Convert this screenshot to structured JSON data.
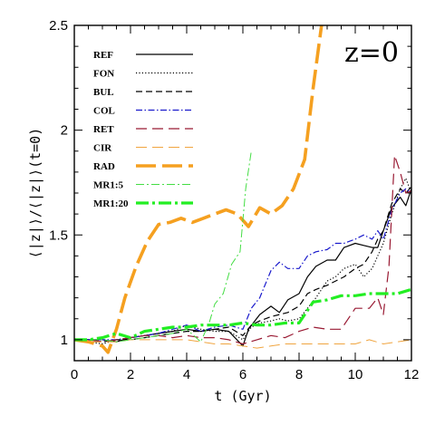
{
  "chart_data": {
    "type": "line",
    "panel_label": "z=0",
    "xlabel": "t (Gyr)",
    "ylabel": "⟨|z|⟩/⟨|z|⟩(t=0)",
    "xlim": [
      0,
      12
    ],
    "ylim": [
      0.9,
      2.5
    ],
    "xticks": [
      0,
      2,
      4,
      6,
      8,
      10,
      12
    ],
    "yticks": [
      1,
      1.5,
      2,
      2.5
    ],
    "xtick_labels": [
      "0",
      "2",
      "4",
      "6",
      "8",
      "10",
      "12"
    ],
    "ytick_labels": [
      "1",
      "1.5",
      "2",
      "2.5"
    ],
    "legend_position": "top-left",
    "grid": false,
    "series": [
      {
        "name": "REF",
        "color": "#000000",
        "dash": "none",
        "width": 1.2,
        "x": [
          0,
          0.5,
          1,
          1.5,
          2,
          2.5,
          3,
          3.5,
          4,
          4.5,
          5,
          5.5,
          6,
          6.2,
          6.6,
          7,
          7.3,
          7.6,
          8,
          8.3,
          8.6,
          9,
          9.3,
          9.6,
          10,
          10.3,
          10.6,
          10.8,
          11,
          11.3,
          11.6,
          11.8,
          12
        ],
        "y": [
          1.0,
          1.0,
          1.0,
          0.99,
          1.01,
          1.02,
          1.03,
          1.04,
          1.05,
          1.04,
          1.05,
          1.04,
          0.97,
          1.05,
          1.12,
          1.16,
          1.13,
          1.19,
          1.22,
          1.3,
          1.35,
          1.38,
          1.38,
          1.44,
          1.46,
          1.45,
          1.44,
          1.44,
          1.52,
          1.63,
          1.68,
          1.64,
          1.72
        ]
      },
      {
        "name": "FON",
        "color": "#000000",
        "dash": "1.2,2.2",
        "width": 1.2,
        "x": [
          0,
          0.5,
          1,
          1.5,
          2,
          2.5,
          3,
          3.5,
          4,
          4.5,
          5,
          5.5,
          6,
          6.3,
          6.6,
          7,
          7.3,
          7.6,
          8,
          8.3,
          8.6,
          9,
          9.3,
          9.6,
          10,
          10.3,
          10.6,
          10.8,
          11,
          11.3,
          11.6,
          11.8,
          12
        ],
        "y": [
          1.0,
          0.99,
          0.98,
          1.0,
          1.01,
          1.02,
          1.03,
          1.04,
          1.07,
          1.05,
          1.04,
          1.04,
          1.0,
          1.06,
          1.08,
          1.09,
          1.1,
          1.09,
          1.1,
          1.15,
          1.2,
          1.28,
          1.3,
          1.34,
          1.36,
          1.3,
          1.34,
          1.4,
          1.46,
          1.6,
          1.72,
          1.77,
          1.7
        ]
      },
      {
        "name": "BUL",
        "color": "#000000",
        "dash": "7,4",
        "width": 1.2,
        "x": [
          0,
          0.5,
          1,
          1.5,
          2,
          2.5,
          3,
          3.5,
          4,
          4.5,
          5,
          5.5,
          6,
          6.3,
          6.6,
          7,
          7.3,
          7.6,
          8,
          8.3,
          8.6,
          9,
          9.3,
          9.6,
          10,
          10.3,
          10.6,
          10.8,
          11,
          11.3,
          11.6,
          11.8,
          12
        ],
        "y": [
          1.0,
          1.0,
          0.99,
          1.0,
          1.0,
          1.01,
          1.02,
          1.03,
          1.04,
          1.04,
          1.05,
          1.06,
          1.02,
          1.07,
          1.09,
          1.11,
          1.12,
          1.13,
          1.16,
          1.22,
          1.24,
          1.26,
          1.28,
          1.3,
          1.34,
          1.36,
          1.42,
          1.48,
          1.52,
          1.65,
          1.72,
          1.7,
          1.73
        ]
      },
      {
        "name": "COL",
        "color": "#1a1acc",
        "dash": "7,2.5,1.5,2.5",
        "width": 1.2,
        "x": [
          0,
          0.5,
          1,
          1.5,
          2,
          2.5,
          3,
          3.5,
          4,
          4.5,
          5,
          5.5,
          6,
          6.3,
          6.6,
          7,
          7.3,
          7.6,
          8,
          8.3,
          8.6,
          9,
          9.3,
          9.6,
          10,
          10.3,
          10.6,
          10.8,
          11,
          11.3,
          11.6,
          11.8,
          12
        ],
        "y": [
          1.0,
          1.0,
          1.0,
          1.0,
          1.01,
          1.02,
          1.03,
          1.05,
          1.07,
          1.04,
          1.06,
          1.07,
          1.05,
          1.15,
          1.2,
          1.33,
          1.37,
          1.34,
          1.34,
          1.4,
          1.42,
          1.43,
          1.46,
          1.46,
          1.48,
          1.5,
          1.48,
          1.52,
          1.48,
          1.62,
          1.7,
          1.72,
          1.7
        ]
      },
      {
        "name": "RET",
        "color": "#991a33",
        "dash": "12,6",
        "width": 1.2,
        "x": [
          0,
          0.5,
          1,
          1.5,
          2,
          2.5,
          3,
          3.5,
          4,
          4.5,
          5,
          5.5,
          6,
          6.5,
          7,
          7.5,
          8,
          8.5,
          9,
          9.5,
          10,
          10.5,
          10.8,
          11,
          11.2,
          11.4,
          11.6,
          11.8,
          12
        ],
        "y": [
          1.0,
          1.0,
          0.99,
          1.0,
          1.01,
          1.02,
          1.02,
          1.01,
          1.02,
          1.01,
          1.01,
          1.0,
          0.98,
          1.0,
          1.02,
          1.01,
          1.04,
          1.06,
          1.05,
          1.05,
          1.15,
          1.15,
          1.2,
          1.12,
          1.35,
          1.88,
          1.8,
          1.7,
          1.71
        ]
      },
      {
        "name": "CIR",
        "color": "#f0a540",
        "dash": "12,6",
        "width": 1.0,
        "x": [
          0,
          0.5,
          1,
          1.5,
          2,
          2.5,
          3,
          3.5,
          4,
          4.5,
          5,
          5.5,
          6,
          6.5,
          7,
          7.5,
          8,
          8.5,
          9,
          9.5,
          10,
          10.5,
          11,
          11.5,
          12
        ],
        "y": [
          1.0,
          0.99,
          0.99,
          0.99,
          1.0,
          1.0,
          1.0,
          1.0,
          1.0,
          0.99,
          0.98,
          0.98,
          0.97,
          0.96,
          0.97,
          0.98,
          0.98,
          0.98,
          0.98,
          0.98,
          0.98,
          1.0,
          0.98,
          0.99,
          1.0
        ]
      },
      {
        "name": "RAD",
        "color": "#f5a020",
        "dash": "22,7",
        "width": 3.6,
        "x": [
          0,
          0.5,
          1,
          1.2,
          1.5,
          1.8,
          2.2,
          2.6,
          3,
          3.4,
          3.8,
          4.2,
          4.6,
          5,
          5.4,
          5.8,
          6.2,
          6.6,
          7,
          7.4,
          7.8,
          8.2,
          8.5,
          8.8
        ],
        "y": [
          1.0,
          0.99,
          0.97,
          0.94,
          1.05,
          1.2,
          1.35,
          1.47,
          1.55,
          1.56,
          1.58,
          1.56,
          1.58,
          1.6,
          1.62,
          1.6,
          1.54,
          1.63,
          1.6,
          1.64,
          1.72,
          1.86,
          2.2,
          2.5
        ]
      },
      {
        "name": "MR1:5",
        "color": "#44dd44",
        "dash": "9,3,2,3",
        "width": 1.0,
        "x": [
          0,
          0.5,
          1,
          1.5,
          2,
          2.5,
          3,
          3.5,
          4,
          4.5,
          4.8,
          5.0,
          5.3,
          5.6,
          5.9,
          6.1,
          6.3
        ],
        "y": [
          1.0,
          1.0,
          1.0,
          0.99,
          1.0,
          1.01,
          1.02,
          1.03,
          1.05,
          0.99,
          1.08,
          1.17,
          1.22,
          1.36,
          1.42,
          1.72,
          1.9
        ]
      },
      {
        "name": "MR1:20",
        "color": "#22ee22",
        "dash": "14,4,3,4",
        "width": 3.2,
        "x": [
          0,
          0.5,
          1,
          1.5,
          2,
          2.5,
          3,
          3.5,
          4,
          4.5,
          5,
          5.5,
          6,
          6.5,
          7,
          7.5,
          8,
          8.5,
          9,
          9.5,
          10,
          10.5,
          11,
          11.5,
          12
        ],
        "y": [
          1.0,
          1.0,
          1.01,
          1.03,
          1.01,
          1.04,
          1.05,
          1.06,
          1.06,
          1.07,
          1.07,
          1.07,
          1.08,
          1.07,
          1.07,
          1.08,
          1.08,
          1.18,
          1.19,
          1.21,
          1.21,
          1.22,
          1.22,
          1.22,
          1.24
        ]
      }
    ]
  }
}
